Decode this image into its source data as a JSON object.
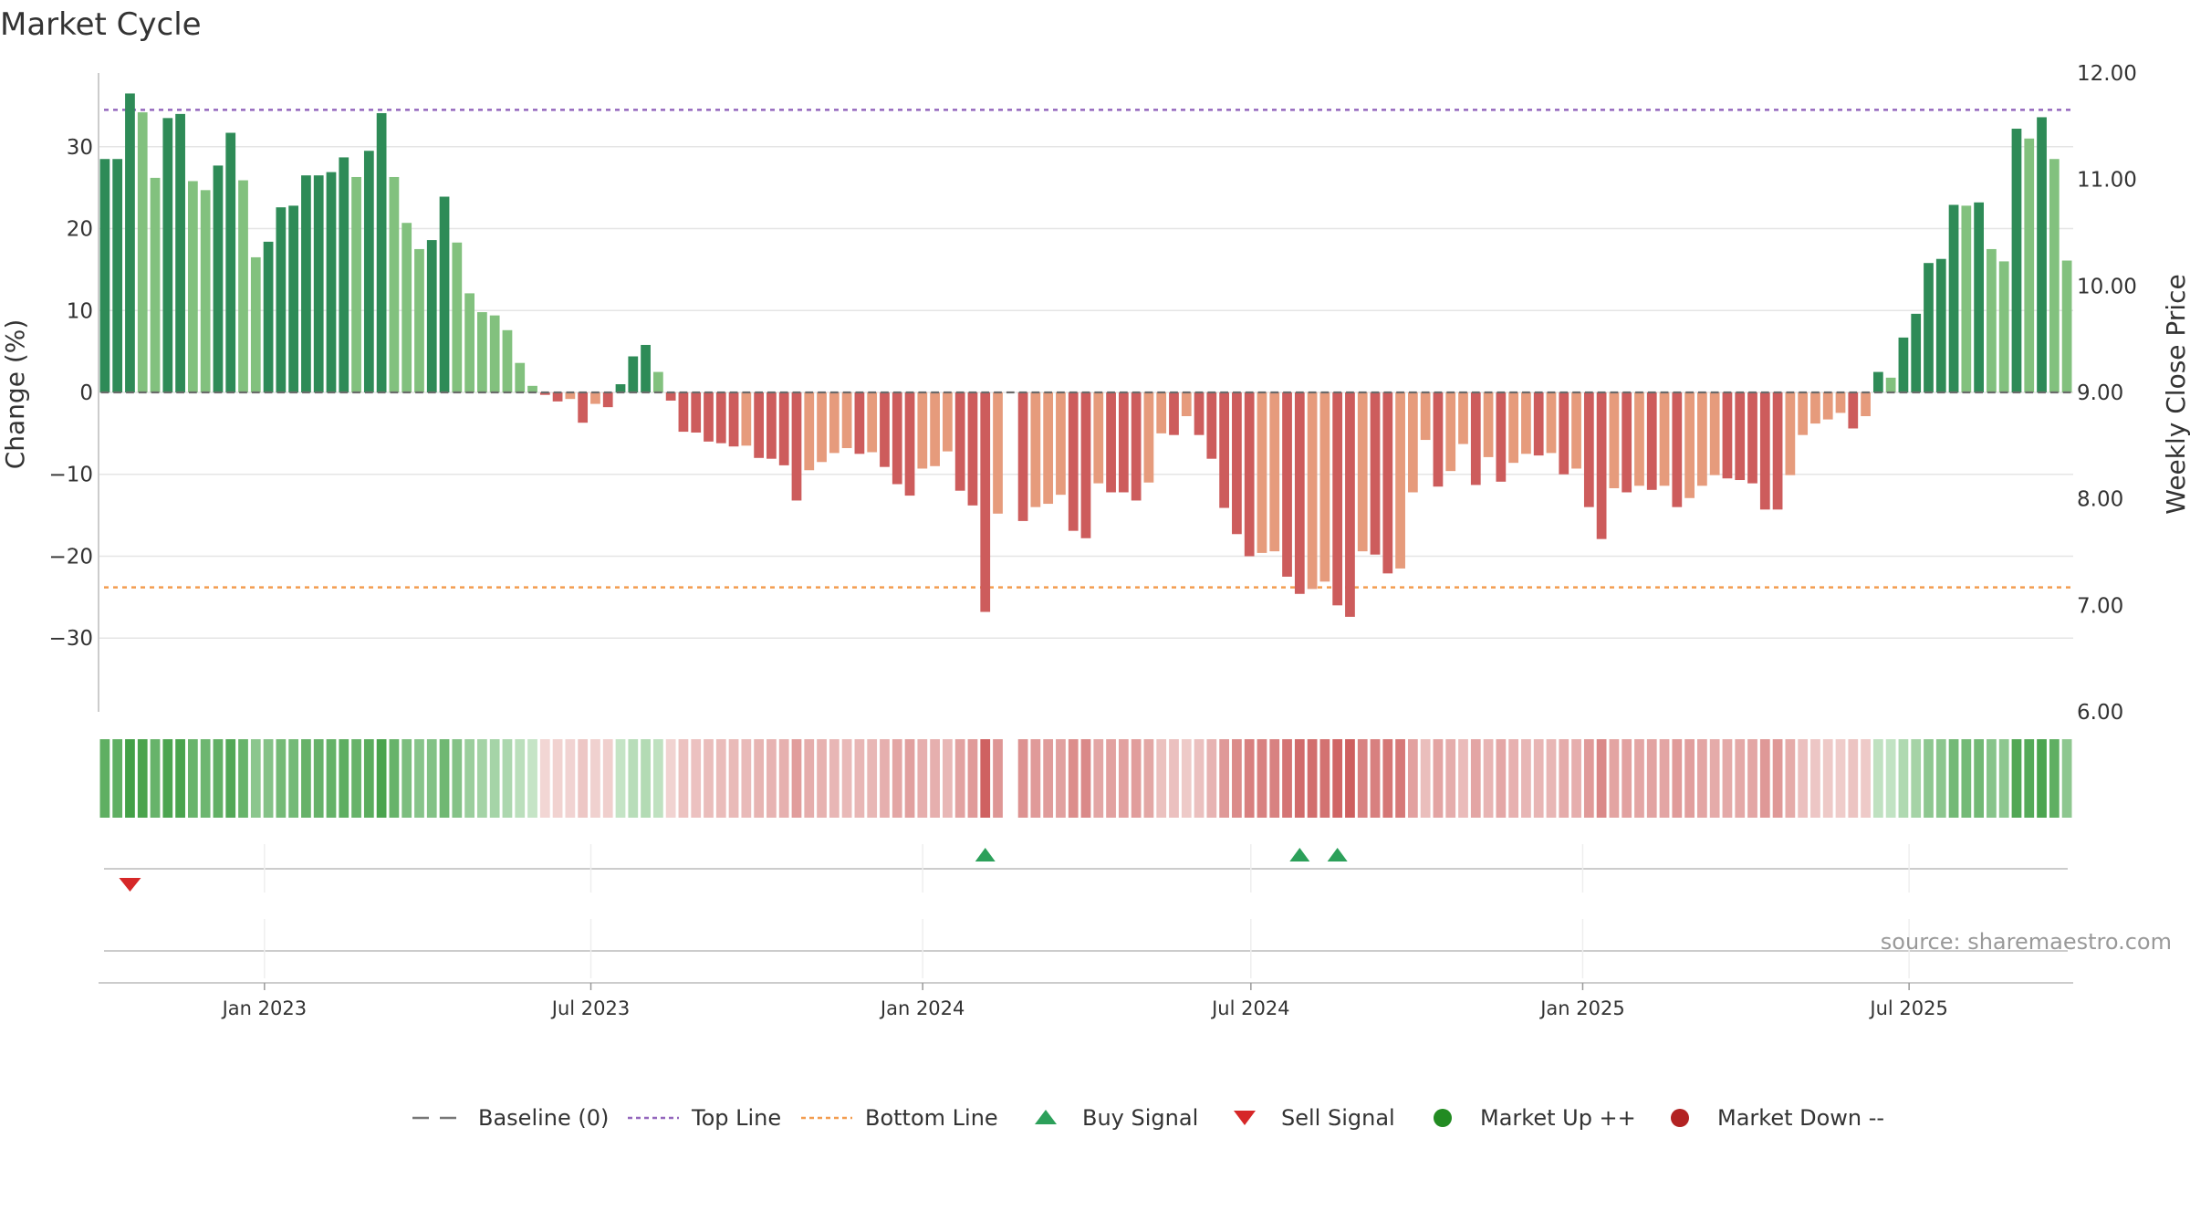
{
  "chart_data": {
    "type": "bar",
    "title": "Market Cycle",
    "source": "source: sharemaestro.com",
    "ylabel_left": "Change (%)",
    "ylabel_right": "Weekly Close Price",
    "ylim_left": [
      -39,
      39
    ],
    "ylim_right": [
      6.0,
      12.0
    ],
    "left_ticks": [
      30,
      20,
      10,
      0,
      -10,
      -20,
      -30
    ],
    "left_tick_labels": [
      "30",
      "20",
      "10",
      "0",
      "−10",
      "−20",
      "−30"
    ],
    "right_ticks": [
      12.0,
      11.0,
      10.0,
      9.0,
      8.0,
      7.0,
      6.0
    ],
    "right_tick_labels": [
      "12.00",
      "11.00",
      "10.00",
      "9.00",
      "8.00",
      "7.00",
      "6.00"
    ],
    "x_start_date": "2022-10-01",
    "x_end_date": "2025-09-30",
    "x_ticks": [
      "2023-01-01",
      "2023-07-01",
      "2024-01-01",
      "2024-07-01",
      "2025-01-01",
      "2025-07-01"
    ],
    "x_tick_labels": [
      "Jan 2023",
      "Jul 2023",
      "Jan 2024",
      "Jul 2024",
      "Jan 2025",
      "Jul 2025"
    ],
    "top_line": 34.5,
    "bottom_line": -23.8,
    "values": [
      28.5,
      28.5,
      36.5,
      34.2,
      26.2,
      33.5,
      34.0,
      25.8,
      24.7,
      27.7,
      31.7,
      25.9,
      16.5,
      18.4,
      22.6,
      22.8,
      26.5,
      26.5,
      26.9,
      28.7,
      26.3,
      29.5,
      34.1,
      26.3,
      20.7,
      17.5,
      18.6,
      23.9,
      18.3,
      12.1,
      9.8,
      9.4,
      7.6,
      3.6,
      0.8,
      -0.3,
      -1.1,
      -0.8,
      -3.7,
      -1.4,
      -1.8,
      1.0,
      4.4,
      5.8,
      2.5,
      -1.0,
      -4.8,
      -4.9,
      -6.0,
      -6.2,
      -6.6,
      -6.5,
      -8.0,
      -8.1,
      -8.9,
      -13.2,
      -9.5,
      -8.5,
      -7.4,
      -6.8,
      -7.5,
      -7.3,
      -9.1,
      -11.2,
      -12.6,
      -9.3,
      -9.0,
      -7.2,
      -12.0,
      -13.8,
      -26.8,
      -14.8,
      0,
      -15.7,
      -14.0,
      -13.6,
      -12.5,
      -16.9,
      -17.8,
      -11.1,
      -12.2,
      -12.2,
      -13.2,
      -11.0,
      -5.0,
      -5.2,
      -2.9,
      -5.2,
      -8.1,
      -14.1,
      -17.3,
      -20.0,
      -19.6,
      -19.4,
      -22.5,
      -24.6,
      -24.0,
      -23.1,
      -26.0,
      -27.4,
      -19.4,
      -19.8,
      -22.1,
      -21.5,
      -12.2,
      -5.8,
      -11.5,
      -9.6,
      -6.3,
      -11.3,
      -7.9,
      -10.9,
      -8.6,
      -7.5,
      -7.7,
      -7.4,
      -10.0,
      -9.3,
      -14.0,
      -17.9,
      -11.7,
      -12.2,
      -11.4,
      -11.9,
      -11.4,
      -14.0,
      -12.9,
      -11.4,
      -10.1,
      -10.5,
      -10.7,
      -11.1,
      -14.3,
      -14.3,
      -10.1,
      -5.2,
      -3.8,
      -3.3,
      -2.5,
      -4.4,
      -2.9,
      2.5,
      1.8,
      6.7,
      9.6,
      15.8,
      16.3,
      22.9,
      22.8,
      23.2,
      17.5,
      16.0,
      32.2,
      31.0,
      33.6,
      28.5,
      16.1
    ],
    "colors": {
      "up_strong": "#2e8b57",
      "up_light": "#82c17e",
      "down_strong": "#cd5c5c",
      "down_light": "#e69b7c",
      "top_line": "#9467bd",
      "bottom_line": "#f39c4f",
      "grid": "#e5e5e5",
      "buy": "#2ca05a",
      "sell": "#d62728",
      "market_up": "#228b22",
      "market_down": "#b22222"
    },
    "buy_signals": [
      70,
      95,
      98
    ],
    "sell_signals": [
      2
    ],
    "legend": {
      "placement": "bottom-center",
      "items": [
        {
          "label": "Baseline (0)",
          "symbol": "dash"
        },
        {
          "label": "Top Line",
          "symbol": "dot-purple"
        },
        {
          "label": "Bottom Line",
          "symbol": "dot-orange"
        },
        {
          "label": "Buy Signal",
          "symbol": "triangle-up"
        },
        {
          "label": "Sell Signal",
          "symbol": "triangle-down"
        },
        {
          "label": "Market Up ++",
          "symbol": "circle-green"
        },
        {
          "label": "Market Down --",
          "symbol": "circle-red"
        }
      ]
    }
  }
}
